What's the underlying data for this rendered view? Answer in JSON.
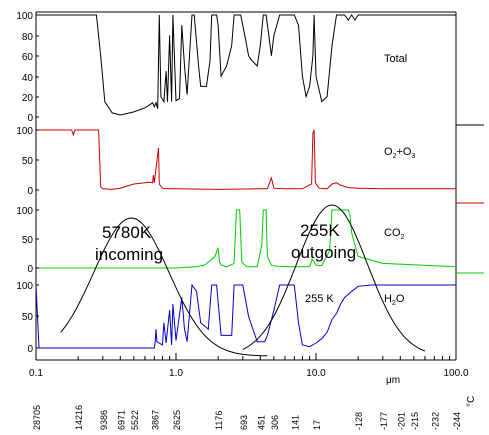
{
  "chart_data": {
    "type": "line",
    "title": "",
    "x_axis": {
      "scale": "log",
      "range": [
        0.1,
        100.0
      ],
      "tick_labels": [
        "0.1",
        "1.0",
        "10.0",
        "100.0"
      ],
      "tick_values": [
        0.1,
        1.0,
        10.0,
        100.0
      ],
      "unit_label": "μm"
    },
    "secondary_axis": {
      "unit_label": "°C",
      "tick_labels": [
        "28705",
        "14216",
        "9386",
        "6971",
        "5522",
        "3867",
        "2625",
        "1176",
        "693",
        "451",
        "306",
        "141",
        "17",
        "-128",
        "-177",
        "-201",
        "-215",
        "-232",
        "-244"
      ],
      "tick_positions_um": [
        0.1,
        0.2,
        0.3,
        0.4,
        0.5,
        0.7,
        1.0,
        2.0,
        3.0,
        4.0,
        5.0,
        7.0,
        10.0,
        20.0,
        30.0,
        40.0,
        50.0,
        70.0,
        100.0
      ]
    },
    "panels": [
      {
        "name": "Total",
        "color": "#000000",
        "y_tick_labels": [
          "0",
          "20",
          "40",
          "60",
          "80",
          "100"
        ],
        "y_range": [
          0,
          100
        ],
        "points": [
          [
            0.1,
            100
          ],
          [
            0.27,
            100
          ],
          [
            0.29,
            60
          ],
          [
            0.31,
            15
          ],
          [
            0.35,
            4
          ],
          [
            0.4,
            2
          ],
          [
            0.5,
            5
          ],
          [
            0.6,
            9
          ],
          [
            0.65,
            12
          ],
          [
            0.68,
            14
          ],
          [
            0.7,
            10
          ],
          [
            0.72,
            14
          ],
          [
            0.74,
            8
          ],
          [
            0.76,
            100
          ],
          [
            0.78,
            20
          ],
          [
            0.82,
            15
          ],
          [
            0.85,
            45
          ],
          [
            0.87,
            15
          ],
          [
            0.9,
            80
          ],
          [
            0.93,
            15
          ],
          [
            0.95,
            100
          ],
          [
            1.0,
            16
          ],
          [
            1.06,
            18
          ],
          [
            1.1,
            90
          ],
          [
            1.15,
            50
          ],
          [
            1.2,
            22
          ],
          [
            1.3,
            100
          ],
          [
            1.35,
            100
          ],
          [
            1.45,
            50
          ],
          [
            1.5,
            30
          ],
          [
            1.65,
            30
          ],
          [
            1.75,
            55
          ],
          [
            1.8,
            100
          ],
          [
            1.95,
            100
          ],
          [
            2.0,
            90
          ],
          [
            2.1,
            40
          ],
          [
            2.3,
            50
          ],
          [
            2.5,
            70
          ],
          [
            2.6,
            100
          ],
          [
            2.9,
            100
          ],
          [
            3.1,
            80
          ],
          [
            3.3,
            60
          ],
          [
            3.5,
            55
          ],
          [
            3.8,
            50
          ],
          [
            4.0,
            70
          ],
          [
            4.2,
            100
          ],
          [
            4.4,
            100
          ],
          [
            4.6,
            80
          ],
          [
            4.8,
            60
          ],
          [
            5.0,
            80
          ],
          [
            5.5,
            100
          ],
          [
            6.0,
            100
          ],
          [
            6.5,
            100
          ],
          [
            7.0,
            100
          ],
          [
            7.5,
            90
          ],
          [
            8.0,
            40
          ],
          [
            8.5,
            20
          ],
          [
            9.0,
            30
          ],
          [
            9.5,
            60
          ],
          [
            9.7,
            100
          ],
          [
            10.0,
            40
          ],
          [
            11.0,
            15
          ],
          [
            12.0,
            20
          ],
          [
            13.0,
            70
          ],
          [
            14.0,
            100
          ],
          [
            15.0,
            100
          ],
          [
            16.0,
            100
          ],
          [
            17.0,
            95
          ],
          [
            18.0,
            100
          ],
          [
            19.0,
            95
          ],
          [
            20.0,
            100
          ],
          [
            25.0,
            100
          ],
          [
            30.0,
            100
          ],
          [
            100.0,
            100
          ]
        ]
      },
      {
        "name": "O2+O3",
        "label_main": "O",
        "label_sub1": "2",
        "label_mid": "+O",
        "label_sub2": "3",
        "color": "#cc0000",
        "y_tick_labels": [
          "0",
          "50",
          "100"
        ],
        "y_range": [
          0,
          100
        ],
        "points": [
          [
            0.1,
            100
          ],
          [
            0.18,
            100
          ],
          [
            0.185,
            92
          ],
          [
            0.19,
            100
          ],
          [
            0.28,
            100
          ],
          [
            0.29,
            5
          ],
          [
            0.3,
            2
          ],
          [
            0.35,
            1
          ],
          [
            0.4,
            3
          ],
          [
            0.5,
            10
          ],
          [
            0.6,
            12
          ],
          [
            0.65,
            13
          ],
          [
            0.68,
            12
          ],
          [
            0.69,
            25
          ],
          [
            0.7,
            12
          ],
          [
            0.75,
            70
          ],
          [
            0.76,
            10
          ],
          [
            0.8,
            3
          ],
          [
            0.9,
            2
          ],
          [
            1.0,
            2
          ],
          [
            2.0,
            1
          ],
          [
            4.0,
            2
          ],
          [
            4.5,
            2
          ],
          [
            4.8,
            20
          ],
          [
            5.0,
            3
          ],
          [
            6.0,
            2
          ],
          [
            8.0,
            2
          ],
          [
            9.3,
            10
          ],
          [
            9.5,
            95
          ],
          [
            9.7,
            100
          ],
          [
            9.9,
            12
          ],
          [
            10.5,
            3
          ],
          [
            12.0,
            2
          ],
          [
            13.0,
            10
          ],
          [
            14.0,
            12
          ],
          [
            15.0,
            8
          ],
          [
            17.0,
            4
          ],
          [
            20.0,
            3
          ],
          [
            30.0,
            2
          ],
          [
            100.0,
            2
          ]
        ]
      },
      {
        "name": "CO2",
        "label_main": "CO",
        "label_sub1": "2",
        "color": "#00cc00",
        "y_tick_labels": [
          "0",
          "50",
          "100"
        ],
        "y_range": [
          0,
          100
        ],
        "points": [
          [
            0.1,
            0
          ],
          [
            1.0,
            0
          ],
          [
            1.4,
            2
          ],
          [
            1.6,
            5
          ],
          [
            1.9,
            20
          ],
          [
            2.0,
            35
          ],
          [
            2.05,
            10
          ],
          [
            2.1,
            5
          ],
          [
            2.3,
            2
          ],
          [
            2.6,
            8
          ],
          [
            2.7,
            100
          ],
          [
            2.85,
            100
          ],
          [
            2.95,
            10
          ],
          [
            3.2,
            2
          ],
          [
            3.8,
            2
          ],
          [
            4.1,
            40
          ],
          [
            4.2,
            100
          ],
          [
            4.4,
            100
          ],
          [
            4.5,
            20
          ],
          [
            4.8,
            5
          ],
          [
            5.2,
            3
          ],
          [
            7.0,
            2
          ],
          [
            9.0,
            2
          ],
          [
            9.4,
            15
          ],
          [
            10.0,
            5
          ],
          [
            11.0,
            4
          ],
          [
            12.5,
            30
          ],
          [
            13.0,
            100
          ],
          [
            17.0,
            100
          ],
          [
            17.5,
            90
          ],
          [
            18.0,
            60
          ],
          [
            20.0,
            20
          ],
          [
            30.0,
            8
          ],
          [
            100.0,
            2
          ]
        ]
      },
      {
        "name": "H2O",
        "label_main": "H",
        "label_sub1": "2",
        "label_tail": "O",
        "color": "#0000cc",
        "y_tick_labels": [
          "0",
          "50",
          "100"
        ],
        "y_range": [
          0,
          100
        ],
        "points": [
          [
            0.1,
            100
          ],
          [
            0.105,
            0
          ],
          [
            0.2,
            0
          ],
          [
            0.5,
            0
          ],
          [
            0.7,
            0
          ],
          [
            0.71,
            10
          ],
          [
            0.72,
            30
          ],
          [
            0.73,
            10
          ],
          [
            0.8,
            5
          ],
          [
            0.82,
            40
          ],
          [
            0.85,
            8
          ],
          [
            0.9,
            60
          ],
          [
            0.93,
            5
          ],
          [
            0.95,
            70
          ],
          [
            1.0,
            12
          ],
          [
            1.1,
            80
          ],
          [
            1.15,
            30
          ],
          [
            1.2,
            10
          ],
          [
            1.3,
            100
          ],
          [
            1.4,
            90
          ],
          [
            1.5,
            40
          ],
          [
            1.7,
            30
          ],
          [
            1.8,
            100
          ],
          [
            1.95,
            100
          ],
          [
            2.1,
            20
          ],
          [
            2.5,
            20
          ],
          [
            2.6,
            100
          ],
          [
            3.0,
            100
          ],
          [
            3.3,
            50
          ],
          [
            3.8,
            10
          ],
          [
            4.3,
            10
          ],
          [
            4.5,
            20
          ],
          [
            5.0,
            60
          ],
          [
            5.5,
            100
          ],
          [
            7.0,
            100
          ],
          [
            7.5,
            40
          ],
          [
            8.0,
            5
          ],
          [
            9.0,
            2
          ],
          [
            10.0,
            8
          ],
          [
            11.0,
            15
          ],
          [
            12.0,
            25
          ],
          [
            13.0,
            45
          ],
          [
            14.0,
            55
          ],
          [
            15.0,
            70
          ],
          [
            16.0,
            80
          ],
          [
            18.0,
            90
          ],
          [
            20.0,
            98
          ],
          [
            25.0,
            100
          ],
          [
            100.0,
            100
          ]
        ]
      }
    ],
    "annotations": [
      {
        "text": "5780K",
        "kind": "blackbody",
        "color": "#000000"
      },
      {
        "text": "incoming",
        "kind": "blackbody",
        "color": "#000000"
      },
      {
        "text": "255K",
        "kind": "blackbody",
        "color": "#000000"
      },
      {
        "text": "outgoing",
        "kind": "blackbody",
        "color": "#000000"
      },
      {
        "text": "255 K",
        "kind": "inner",
        "color": "#000000"
      }
    ],
    "grid": false,
    "axis_line_color": "#008080"
  }
}
